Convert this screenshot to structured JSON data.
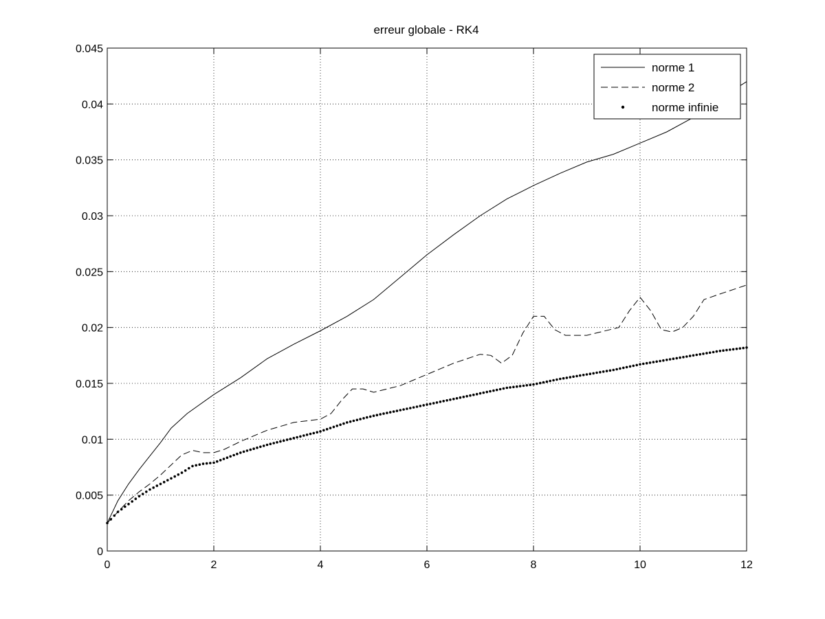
{
  "chart_data": {
    "type": "line",
    "title": "erreur globale - RK4",
    "xlabel": "",
    "ylabel": "",
    "xlim": [
      0,
      12
    ],
    "ylim": [
      0,
      0.045
    ],
    "xticks": [
      0,
      2,
      4,
      6,
      8,
      10,
      12
    ],
    "xtick_labels": [
      "0",
      "2",
      "4",
      "6",
      "8",
      "10",
      "12"
    ],
    "yticks": [
      0,
      0.005,
      0.01,
      0.015,
      0.02,
      0.025,
      0.03,
      0.035,
      0.04,
      0.045
    ],
    "ytick_labels": [
      "0",
      "0.005",
      "0.01",
      "0.015",
      "0.02",
      "0.025",
      "0.03",
      "0.035",
      "0.04",
      "0.045"
    ],
    "grid": true,
    "legend_position": "top-right",
    "series": [
      {
        "name": "norme 1",
        "style": "solid",
        "x": [
          0,
          0.2,
          0.4,
          0.6,
          0.8,
          1.0,
          1.2,
          1.5,
          2.0,
          2.5,
          3.0,
          3.5,
          4.0,
          4.5,
          5.0,
          5.5,
          6.0,
          6.5,
          7.0,
          7.5,
          8.0,
          8.5,
          9.0,
          9.5,
          10.0,
          10.5,
          11.0,
          11.5,
          12.0
        ],
        "values": [
          0.0025,
          0.0045,
          0.006,
          0.0073,
          0.0085,
          0.0097,
          0.011,
          0.0123,
          0.014,
          0.0155,
          0.0172,
          0.0185,
          0.0197,
          0.021,
          0.0225,
          0.0245,
          0.0265,
          0.0283,
          0.03,
          0.0315,
          0.0327,
          0.0338,
          0.0348,
          0.0355,
          0.0365,
          0.0375,
          0.0388,
          0.0405,
          0.042
        ]
      },
      {
        "name": "norme 2",
        "style": "dashed",
        "x": [
          0,
          0.2,
          0.4,
          0.6,
          0.8,
          1.0,
          1.2,
          1.4,
          1.6,
          1.8,
          2.0,
          2.2,
          2.5,
          3.0,
          3.5,
          4.0,
          4.2,
          4.4,
          4.6,
          4.8,
          5.0,
          5.5,
          6.0,
          6.5,
          7.0,
          7.2,
          7.4,
          7.6,
          7.8,
          8.0,
          8.2,
          8.4,
          8.6,
          9.0,
          9.6,
          9.8,
          10.0,
          10.2,
          10.4,
          10.6,
          10.8,
          11.0,
          11.2,
          11.5,
          12.0
        ],
        "values": [
          0.0025,
          0.0035,
          0.0045,
          0.0053,
          0.006,
          0.0068,
          0.0077,
          0.0086,
          0.009,
          0.0088,
          0.0088,
          0.0091,
          0.0098,
          0.0108,
          0.0115,
          0.0118,
          0.0123,
          0.0135,
          0.0145,
          0.0145,
          0.0142,
          0.0148,
          0.0158,
          0.0168,
          0.0176,
          0.0175,
          0.0168,
          0.0175,
          0.0195,
          0.021,
          0.021,
          0.0198,
          0.0193,
          0.0193,
          0.02,
          0.0215,
          0.0227,
          0.0215,
          0.0198,
          0.0196,
          0.02,
          0.021,
          0.0225,
          0.023,
          0.0238
        ]
      },
      {
        "name": "norme infinie",
        "style": "dots",
        "x": [
          0,
          0.2,
          0.4,
          0.6,
          0.8,
          1.0,
          1.2,
          1.4,
          1.6,
          1.8,
          2.0,
          2.5,
          3.0,
          3.5,
          4.0,
          4.5,
          5.0,
          5.5,
          6.0,
          6.5,
          7.0,
          7.5,
          8.0,
          8.5,
          9.0,
          9.5,
          10.0,
          10.5,
          11.0,
          11.5,
          12.0
        ],
        "values": [
          0.0025,
          0.0035,
          0.0042,
          0.0049,
          0.0055,
          0.006,
          0.0065,
          0.007,
          0.0076,
          0.0078,
          0.0079,
          0.0088,
          0.0095,
          0.0101,
          0.0107,
          0.0115,
          0.0121,
          0.0126,
          0.0131,
          0.0136,
          0.0141,
          0.0146,
          0.0149,
          0.0154,
          0.0158,
          0.0162,
          0.0167,
          0.0171,
          0.0175,
          0.0179,
          0.0182
        ]
      }
    ]
  }
}
